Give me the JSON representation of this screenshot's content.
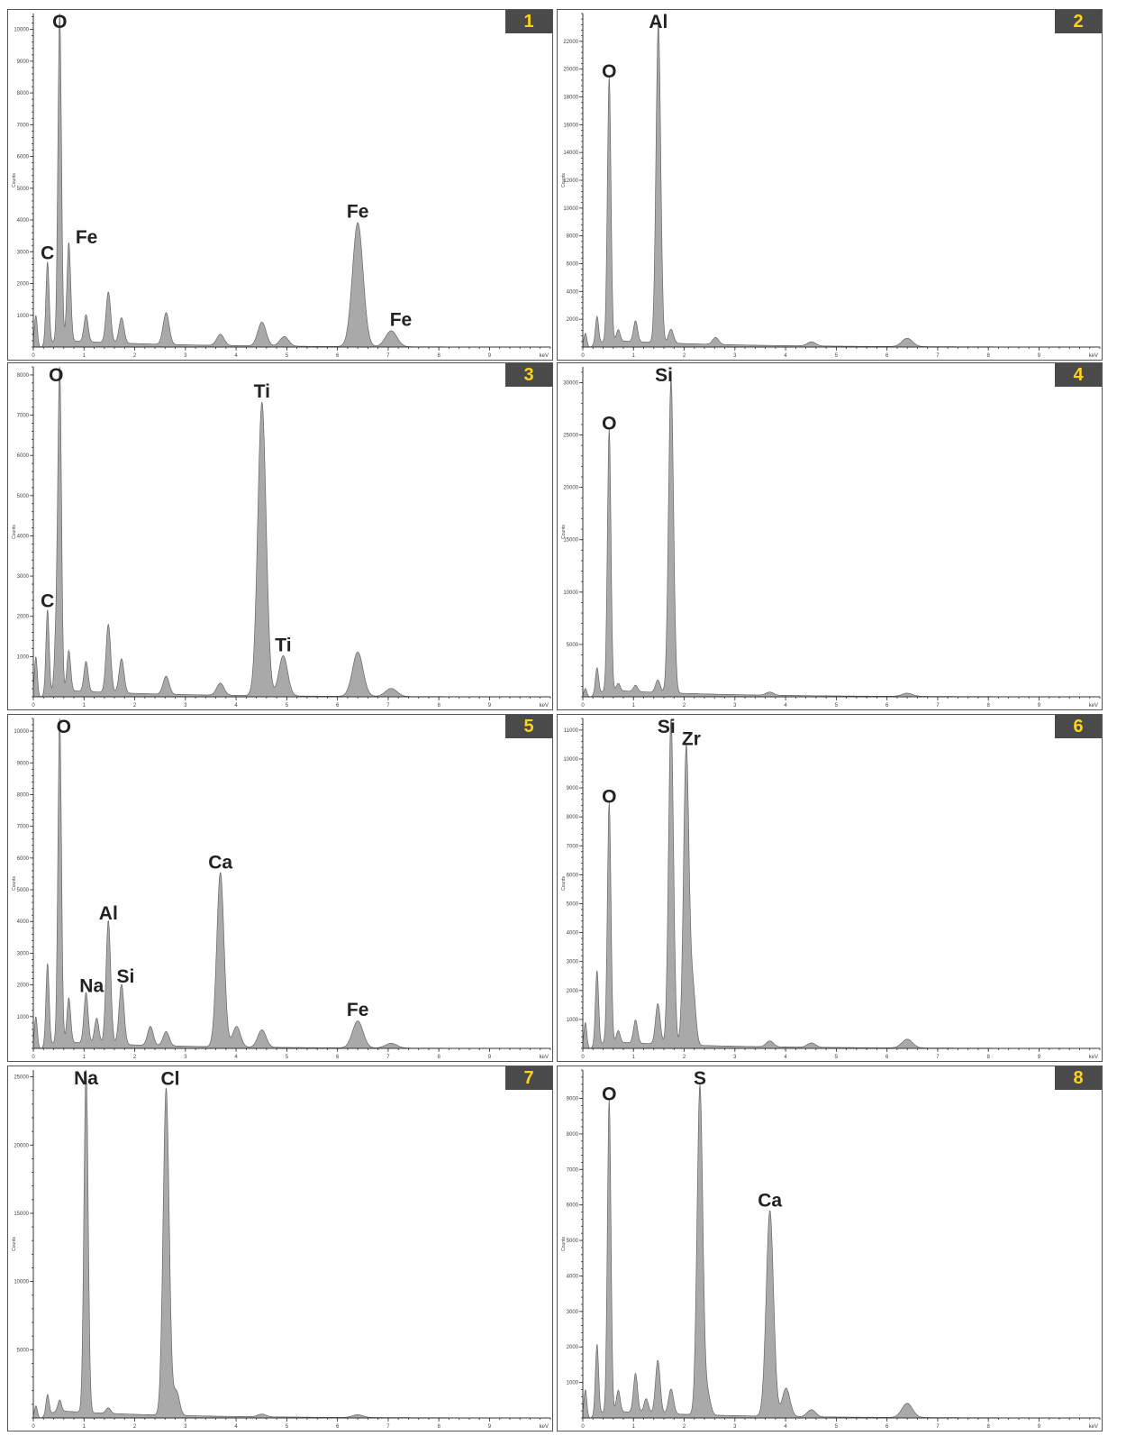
{
  "colors": {
    "badge_bg": "#4a4a4a",
    "badge_text": "#ffd21a",
    "spectrum_fill": "#a9a9a9",
    "spectrum_line": "#666666"
  },
  "chart_data": [
    {
      "type": "area",
      "panel": "1",
      "ylabel": "Counts",
      "xunit": "keV",
      "xlim": [
        0,
        10.2
      ],
      "ylim": [
        0,
        10500
      ],
      "yticks": [
        1000,
        2000,
        3000,
        4000,
        5000,
        6000,
        7000,
        8000,
        9000,
        10000
      ],
      "xticks": [
        0,
        1,
        2,
        3,
        4,
        5,
        6,
        7,
        8,
        9
      ],
      "peaks": [
        {
          "x": 0.05,
          "y": 1000
        },
        {
          "x": 0.28,
          "y": 2600
        },
        {
          "x": 0.52,
          "y": 10300
        },
        {
          "x": 0.7,
          "y": 3100
        },
        {
          "x": 1.04,
          "y": 850
        },
        {
          "x": 1.48,
          "y": 1600
        },
        {
          "x": 1.74,
          "y": 800
        },
        {
          "x": 2.62,
          "y": 1000
        },
        {
          "x": 3.69,
          "y": 350
        },
        {
          "x": 4.51,
          "y": 750
        },
        {
          "x": 4.95,
          "y": 300
        },
        {
          "x": 6.4,
          "y": 3900
        },
        {
          "x": 7.06,
          "y": 500
        }
      ],
      "labels": [
        {
          "text": "O",
          "x": 0.52,
          "y": 10300
        },
        {
          "text": "C",
          "x": 0.28,
          "y": 2600
        },
        {
          "text": "Fe",
          "x": 1.05,
          "y": 3100
        },
        {
          "text": "Fe",
          "x": 6.4,
          "y": 3900
        },
        {
          "text": "Fe",
          "x": 7.25,
          "y": 500
        }
      ]
    },
    {
      "type": "area",
      "panel": "2",
      "ylabel": "Counts",
      "xunit": "keV",
      "xlim": [
        0,
        10.2
      ],
      "ylim": [
        0,
        24000
      ],
      "yticks": [
        2000,
        4000,
        6000,
        8000,
        10000,
        12000,
        14000,
        16000,
        18000,
        20000,
        22000
      ],
      "xticks": [
        0,
        1,
        2,
        3,
        4,
        5,
        6,
        7,
        8,
        9
      ],
      "peaks": [
        {
          "x": 0.05,
          "y": 1000
        },
        {
          "x": 0.28,
          "y": 2000
        },
        {
          "x": 0.52,
          "y": 19000
        },
        {
          "x": 0.7,
          "y": 800
        },
        {
          "x": 1.04,
          "y": 1500
        },
        {
          "x": 1.49,
          "y": 23000
        },
        {
          "x": 1.74,
          "y": 1000
        },
        {
          "x": 2.62,
          "y": 500
        },
        {
          "x": 4.51,
          "y": 300
        },
        {
          "x": 6.4,
          "y": 600
        }
      ],
      "labels": [
        {
          "text": "O",
          "x": 0.52,
          "y": 19000
        },
        {
          "text": "Al",
          "x": 1.49,
          "y": 23000
        }
      ]
    },
    {
      "type": "area",
      "panel": "3",
      "ylabel": "Counts",
      "xunit": "keV",
      "xlim": [
        0,
        10.2
      ],
      "ylim": [
        0,
        8200
      ],
      "yticks": [
        1000,
        2000,
        3000,
        4000,
        5000,
        6000,
        7000,
        8000
      ],
      "xticks": [
        0,
        1,
        2,
        3,
        4,
        5,
        6,
        7,
        8,
        9
      ],
      "peaks": [
        {
          "x": 0.05,
          "y": 1000
        },
        {
          "x": 0.28,
          "y": 2100
        },
        {
          "x": 0.45,
          "y": 1400
        },
        {
          "x": 0.52,
          "y": 8000
        },
        {
          "x": 0.7,
          "y": 1000
        },
        {
          "x": 1.04,
          "y": 750
        },
        {
          "x": 1.48,
          "y": 1700
        },
        {
          "x": 1.74,
          "y": 850
        },
        {
          "x": 2.62,
          "y": 450
        },
        {
          "x": 3.69,
          "y": 300
        },
        {
          "x": 4.51,
          "y": 7300
        },
        {
          "x": 4.93,
          "y": 1000
        },
        {
          "x": 6.4,
          "y": 1100
        },
        {
          "x": 7.06,
          "y": 200
        }
      ],
      "labels": [
        {
          "text": "O",
          "x": 0.45,
          "y": 8000
        },
        {
          "text": "C",
          "x": 0.28,
          "y": 2100
        },
        {
          "text": "Ti",
          "x": 4.51,
          "y": 7300
        },
        {
          "text": "Ti",
          "x": 4.93,
          "y": 1000
        }
      ]
    },
    {
      "type": "area",
      "panel": "4",
      "ylabel": "Counts",
      "xunit": "keV",
      "xlim": [
        0,
        10.2
      ],
      "ylim": [
        0,
        31500
      ],
      "yticks": [
        5000,
        10000,
        15000,
        20000,
        25000,
        30000
      ],
      "xticks": [
        0,
        1,
        2,
        3,
        4,
        5,
        6,
        7,
        8,
        9
      ],
      "peaks": [
        {
          "x": 0.05,
          "y": 800
        },
        {
          "x": 0.28,
          "y": 2500
        },
        {
          "x": 0.52,
          "y": 25000
        },
        {
          "x": 0.7,
          "y": 700
        },
        {
          "x": 1.04,
          "y": 600
        },
        {
          "x": 1.48,
          "y": 1200
        },
        {
          "x": 1.74,
          "y": 30000
        },
        {
          "x": 3.69,
          "y": 300
        },
        {
          "x": 6.4,
          "y": 300
        }
      ],
      "labels": [
        {
          "text": "O",
          "x": 0.52,
          "y": 25000
        },
        {
          "text": "Si",
          "x": 1.6,
          "y": 30000
        }
      ]
    },
    {
      "type": "area",
      "panel": "5",
      "ylabel": "Counts",
      "xunit": "keV",
      "xlim": [
        0,
        10.2
      ],
      "ylim": [
        0,
        10400
      ],
      "yticks": [
        1000,
        2000,
        3000,
        4000,
        5000,
        6000,
        7000,
        8000,
        9000,
        10000
      ],
      "xticks": [
        0,
        1,
        2,
        3,
        4,
        5,
        6,
        7,
        8,
        9
      ],
      "peaks": [
        {
          "x": 0.05,
          "y": 1000
        },
        {
          "x": 0.28,
          "y": 2600
        },
        {
          "x": 0.52,
          "y": 10200
        },
        {
          "x": 0.7,
          "y": 1400
        },
        {
          "x": 1.04,
          "y": 1600
        },
        {
          "x": 1.25,
          "y": 800
        },
        {
          "x": 1.48,
          "y": 3900
        },
        {
          "x": 1.74,
          "y": 1900
        },
        {
          "x": 2.31,
          "y": 600
        },
        {
          "x": 2.62,
          "y": 450
        },
        {
          "x": 3.69,
          "y": 5500
        },
        {
          "x": 4.01,
          "y": 650
        },
        {
          "x": 4.51,
          "y": 550
        },
        {
          "x": 6.4,
          "y": 850
        },
        {
          "x": 7.06,
          "y": 150
        }
      ],
      "labels": [
        {
          "text": "O",
          "x": 0.6,
          "y": 10200
        },
        {
          "text": "Al",
          "x": 1.48,
          "y": 3900
        },
        {
          "text": "Na",
          "x": 1.15,
          "y": 1600
        },
        {
          "text": "Si",
          "x": 1.82,
          "y": 1900
        },
        {
          "text": "Ca",
          "x": 3.69,
          "y": 5500
        },
        {
          "text": "Fe",
          "x": 6.4,
          "y": 850
        }
      ]
    },
    {
      "type": "area",
      "panel": "6",
      "ylabel": "Counts",
      "xunit": "keV",
      "xlim": [
        0,
        10.2
      ],
      "ylim": [
        0,
        11400
      ],
      "yticks": [
        1000,
        2000,
        3000,
        4000,
        5000,
        6000,
        7000,
        8000,
        9000,
        10000,
        11000
      ],
      "xticks": [
        0,
        1,
        2,
        3,
        4,
        5,
        6,
        7,
        8,
        9
      ],
      "peaks": [
        {
          "x": 0.05,
          "y": 900
        },
        {
          "x": 0.28,
          "y": 2600
        },
        {
          "x": 0.52,
          "y": 8300
        },
        {
          "x": 0.7,
          "y": 400
        },
        {
          "x": 1.04,
          "y": 800
        },
        {
          "x": 1.48,
          "y": 1400
        },
        {
          "x": 1.74,
          "y": 11300
        },
        {
          "x": 2.04,
          "y": 10300
        },
        {
          "x": 2.17,
          "y": 2000
        },
        {
          "x": 3.69,
          "y": 200
        },
        {
          "x": 4.51,
          "y": 150
        },
        {
          "x": 6.4,
          "y": 300
        }
      ],
      "labels": [
        {
          "text": "O",
          "x": 0.52,
          "y": 8300
        },
        {
          "text": "Si",
          "x": 1.65,
          "y": 11300
        },
        {
          "text": "Zr",
          "x": 2.14,
          "y": 10300
        }
      ]
    },
    {
      "type": "area",
      "panel": "7",
      "ylabel": "Counts",
      "xunit": "keV",
      "xlim": [
        0,
        10.2
      ],
      "ylim": [
        0,
        25500
      ],
      "yticks": [
        5000,
        10000,
        15000,
        20000,
        25000
      ],
      "xticks": [
        0,
        1,
        2,
        3,
        4,
        5,
        6,
        7,
        8,
        9
      ],
      "peaks": [
        {
          "x": 0.05,
          "y": 900
        },
        {
          "x": 0.28,
          "y": 1500
        },
        {
          "x": 0.52,
          "y": 800
        },
        {
          "x": 1.04,
          "y": 25500
        },
        {
          "x": 1.48,
          "y": 400
        },
        {
          "x": 2.62,
          "y": 24000
        },
        {
          "x": 2.82,
          "y": 1800
        },
        {
          "x": 4.51,
          "y": 200
        },
        {
          "x": 6.4,
          "y": 200
        }
      ],
      "labels": [
        {
          "text": "Na",
          "x": 1.04,
          "y": 25500
        },
        {
          "text": "Cl",
          "x": 2.7,
          "y": 24000
        }
      ]
    },
    {
      "type": "area",
      "panel": "8",
      "ylabel": "Counts",
      "xunit": "keV",
      "xlim": [
        0,
        10.2
      ],
      "ylim": [
        0,
        9800
      ],
      "yticks": [
        1000,
        2000,
        3000,
        4000,
        5000,
        6000,
        7000,
        8000,
        9000
      ],
      "xticks": [
        0,
        1,
        2,
        3,
        4,
        5,
        6,
        7,
        8,
        9
      ],
      "peaks": [
        {
          "x": 0.05,
          "y": 800
        },
        {
          "x": 0.28,
          "y": 2000
        },
        {
          "x": 0.52,
          "y": 8800
        },
        {
          "x": 0.7,
          "y": 600
        },
        {
          "x": 1.04,
          "y": 1100
        },
        {
          "x": 1.25,
          "y": 400
        },
        {
          "x": 1.48,
          "y": 1500
        },
        {
          "x": 1.74,
          "y": 700
        },
        {
          "x": 2.31,
          "y": 9300
        },
        {
          "x": 2.46,
          "y": 600
        },
        {
          "x": 3.69,
          "y": 5800
        },
        {
          "x": 4.01,
          "y": 800
        },
        {
          "x": 4.51,
          "y": 200
        },
        {
          "x": 6.4,
          "y": 400
        }
      ],
      "labels": [
        {
          "text": "O",
          "x": 0.52,
          "y": 8800
        },
        {
          "text": "S",
          "x": 2.31,
          "y": 9300
        },
        {
          "text": "Ca",
          "x": 3.69,
          "y": 5800
        }
      ]
    }
  ]
}
